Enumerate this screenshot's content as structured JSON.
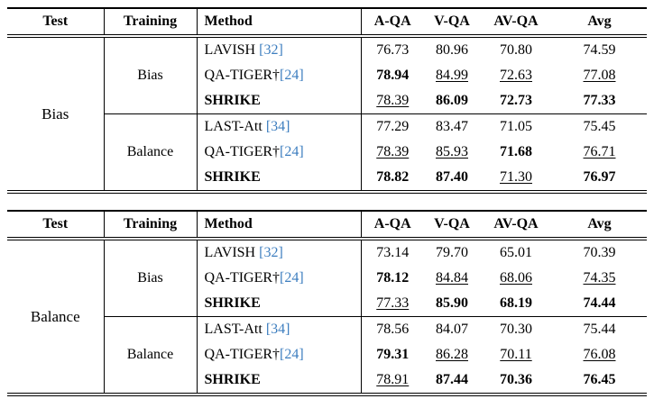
{
  "citation_color": "#3d7ebf",
  "tables": [
    {
      "test": "Bias",
      "headers": [
        "Test",
        "Training",
        "Method",
        "A-QA",
        "V-QA",
        "AV-QA",
        "Avg"
      ],
      "groups": [
        {
          "training": "Bias",
          "rows": [
            {
              "method": {
                "text": "LAVISH ",
                "cite": "[32]",
                "bold": false
              },
              "cells": [
                {
                  "v": "76.73",
                  "s": "n"
                },
                {
                  "v": "80.96",
                  "s": "n"
                },
                {
                  "v": "70.80",
                  "s": "n"
                },
                {
                  "v": "74.59",
                  "s": "n"
                }
              ]
            },
            {
              "method": {
                "text": "QA-TIGER†",
                "cite": "[24]",
                "bold": false
              },
              "cells": [
                {
                  "v": "78.94",
                  "s": "b"
                },
                {
                  "v": "84.99",
                  "s": "u"
                },
                {
                  "v": "72.63",
                  "s": "u"
                },
                {
                  "v": "77.08",
                  "s": "u"
                }
              ]
            },
            {
              "method": {
                "text": "SHRIKE",
                "cite": "",
                "bold": true
              },
              "cells": [
                {
                  "v": "78.39",
                  "s": "u"
                },
                {
                  "v": "86.09",
                  "s": "b"
                },
                {
                  "v": "72.73",
                  "s": "b"
                },
                {
                  "v": "77.33",
                  "s": "b"
                }
              ]
            }
          ]
        },
        {
          "training": "Balance",
          "rows": [
            {
              "method": {
                "text": "LAST-Att ",
                "cite": "[34]",
                "bold": false
              },
              "cells": [
                {
                  "v": "77.29",
                  "s": "n"
                },
                {
                  "v": "83.47",
                  "s": "n"
                },
                {
                  "v": "71.05",
                  "s": "n"
                },
                {
                  "v": "75.45",
                  "s": "n"
                }
              ]
            },
            {
              "method": {
                "text": "QA-TIGER†",
                "cite": "[24]",
                "bold": false
              },
              "cells": [
                {
                  "v": "78.39",
                  "s": "u"
                },
                {
                  "v": "85.93",
                  "s": "u"
                },
                {
                  "v": "71.68",
                  "s": "b"
                },
                {
                  "v": "76.71",
                  "s": "u"
                }
              ]
            },
            {
              "method": {
                "text": "SHRIKE",
                "cite": "",
                "bold": true
              },
              "cells": [
                {
                  "v": "78.82",
                  "s": "b"
                },
                {
                  "v": "87.40",
                  "s": "b"
                },
                {
                  "v": "71.30",
                  "s": "u"
                },
                {
                  "v": "76.97",
                  "s": "b"
                }
              ]
            }
          ]
        }
      ]
    },
    {
      "test": "Balance",
      "headers": [
        "Test",
        "Training",
        "Method",
        "A-QA",
        "V-QA",
        "AV-QA",
        "Avg"
      ],
      "groups": [
        {
          "training": "Bias",
          "rows": [
            {
              "method": {
                "text": "LAVISH ",
                "cite": "[32]",
                "bold": false
              },
              "cells": [
                {
                  "v": "73.14",
                  "s": "n"
                },
                {
                  "v": "79.70",
                  "s": "n"
                },
                {
                  "v": "65.01",
                  "s": "n"
                },
                {
                  "v": "70.39",
                  "s": "n"
                }
              ]
            },
            {
              "method": {
                "text": "QA-TIGER†",
                "cite": "[24]",
                "bold": false
              },
              "cells": [
                {
                  "v": "78.12",
                  "s": "b"
                },
                {
                  "v": "84.84",
                  "s": "u"
                },
                {
                  "v": "68.06",
                  "s": "u"
                },
                {
                  "v": "74.35",
                  "s": "u"
                }
              ]
            },
            {
              "method": {
                "text": "SHRIKE",
                "cite": "",
                "bold": true
              },
              "cells": [
                {
                  "v": "77.33",
                  "s": "u"
                },
                {
                  "v": "85.90",
                  "s": "b"
                },
                {
                  "v": "68.19",
                  "s": "b"
                },
                {
                  "v": "74.44",
                  "s": "b"
                }
              ]
            }
          ]
        },
        {
          "training": "Balance",
          "rows": [
            {
              "method": {
                "text": "LAST-Att ",
                "cite": "[34]",
                "bold": false
              },
              "cells": [
                {
                  "v": "78.56",
                  "s": "n"
                },
                {
                  "v": "84.07",
                  "s": "n"
                },
                {
                  "v": "70.30",
                  "s": "n"
                },
                {
                  "v": "75.44",
                  "s": "n"
                }
              ]
            },
            {
              "method": {
                "text": "QA-TIGER†",
                "cite": "[24]",
                "bold": false
              },
              "cells": [
                {
                  "v": "79.31",
                  "s": "b"
                },
                {
                  "v": "86.28",
                  "s": "u"
                },
                {
                  "v": "70.11",
                  "s": "u"
                },
                {
                  "v": "76.08",
                  "s": "u"
                }
              ]
            },
            {
              "method": {
                "text": "SHRIKE",
                "cite": "",
                "bold": true
              },
              "cells": [
                {
                  "v": "78.91",
                  "s": "u"
                },
                {
                  "v": "87.44",
                  "s": "b"
                },
                {
                  "v": "70.36",
                  "s": "b"
                },
                {
                  "v": "76.45",
                  "s": "b"
                }
              ]
            }
          ]
        }
      ]
    }
  ]
}
